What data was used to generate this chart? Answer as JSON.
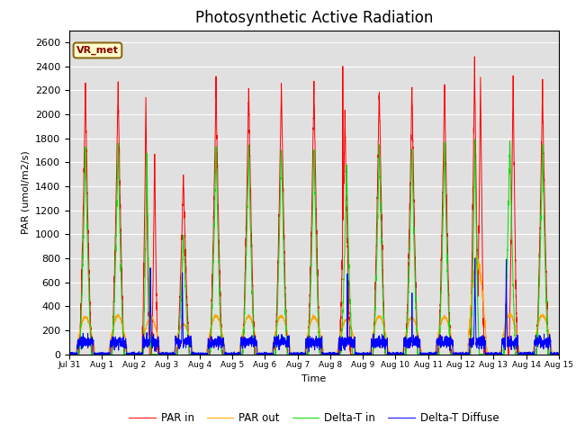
{
  "title": "Photosynthetic Active Radiation",
  "ylabel": "PAR (umol/m2/s)",
  "xlabel": "Time",
  "annotation": "VR_met",
  "ylim": [
    0,
    2700
  ],
  "background_color": "#e0e0e0",
  "line_colors": {
    "PAR in": "#ff0000",
    "PAR out": "#ffa500",
    "Delta-T in": "#00dd00",
    "Delta-T Diffuse": "#0000ff"
  },
  "legend_labels": [
    "PAR in",
    "PAR out",
    "Delta-T in",
    "Delta-T Diffuse"
  ],
  "xtick_labels": [
    "Jul 31",
    "Aug 1",
    "Aug 2",
    "Aug 3",
    "Aug 4",
    "Aug 5",
    "Aug 6",
    "Aug 7",
    "Aug 8",
    "Aug 9",
    "Aug 10",
    "Aug 11",
    "Aug 12",
    "Aug 13",
    "Aug 14",
    "Aug 15"
  ],
  "num_days": 15,
  "ppd": 288,
  "par_in_peaks": [
    2250,
    2260,
    2130,
    1500,
    2250,
    2240,
    2240,
    2240,
    2010,
    2240,
    2240,
    2240,
    2460,
    2310,
    2220,
    0
  ],
  "par_out_peaks": [
    310,
    320,
    310,
    250,
    320,
    315,
    320,
    310,
    290,
    315,
    305,
    310,
    350,
    330,
    325,
    0
  ],
  "delta_t_peaks": [
    1720,
    1750,
    1660,
    990,
    1730,
    1740,
    1740,
    1740,
    1550,
    1740,
    1740,
    1740,
    1790,
    1790,
    1720,
    0
  ],
  "title_fontsize": 12,
  "figsize": [
    6.4,
    4.8
  ],
  "dpi": 100
}
